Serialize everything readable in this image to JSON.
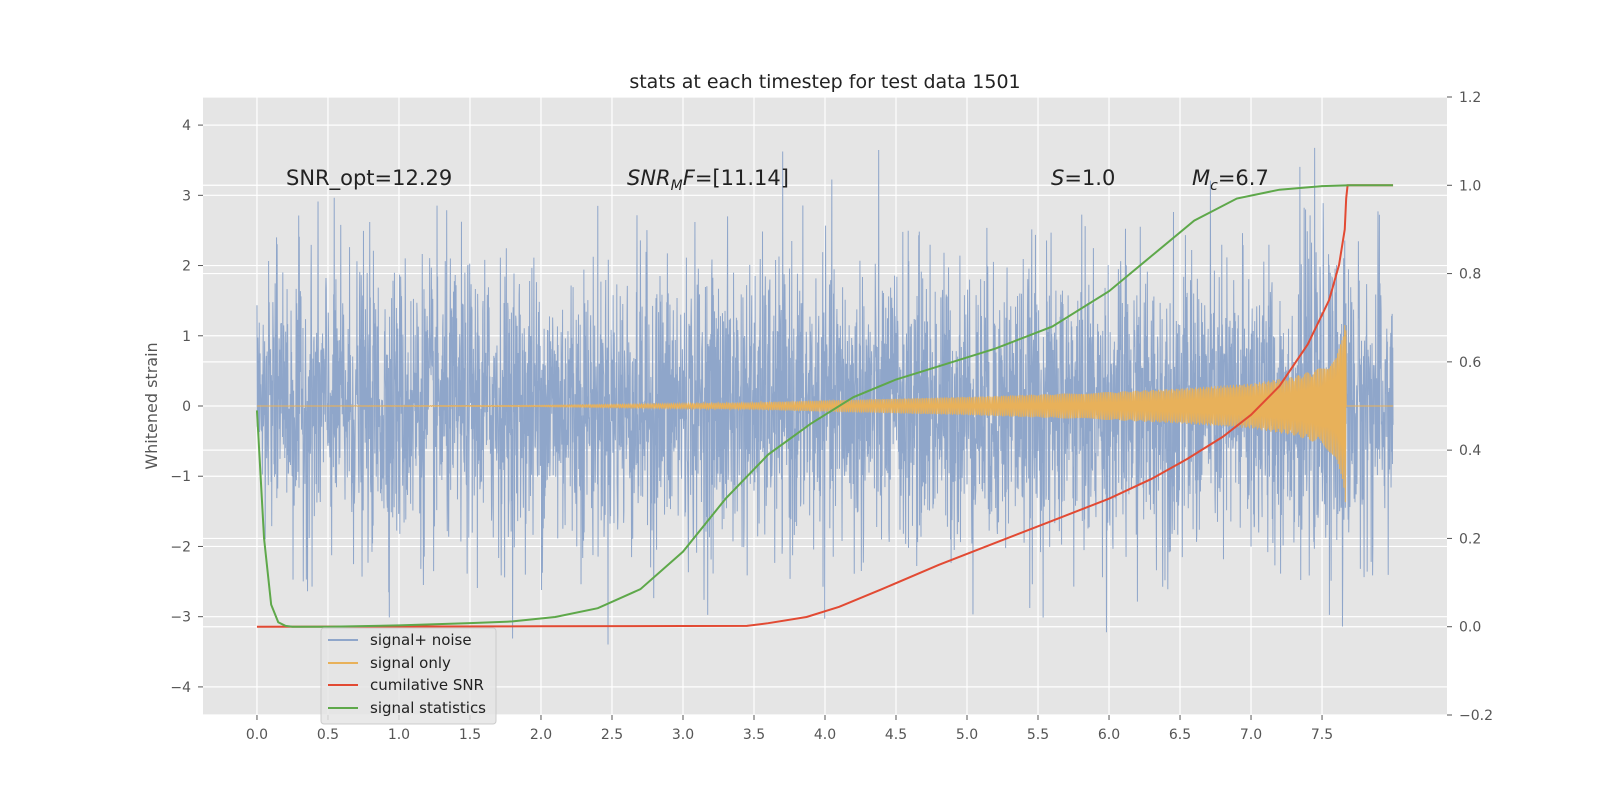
{
  "chart_data": {
    "type": "line",
    "title": "stats at each timestep for test data 1501",
    "ylabel": "Whitened strain",
    "ylabel_right": "",
    "xlim": [
      -0.38,
      8.38
    ],
    "ylim": [
      -4.4,
      4.4
    ],
    "y2lim": [
      -0.2,
      1.2
    ],
    "x_ticks": [
      0.0,
      0.5,
      1.0,
      1.5,
      2.0,
      2.5,
      3.0,
      3.5,
      4.0,
      4.5,
      5.0,
      5.5,
      6.0,
      6.5,
      7.0,
      7.5
    ],
    "x_tick_labels": [
      "0.0",
      "0.5",
      "1.0",
      "1.5",
      "2.0",
      "2.5",
      "3.0",
      "3.5",
      "4.0",
      "4.5",
      "5.0",
      "5.5",
      "6.0",
      "6.5",
      "7.0",
      "7.5"
    ],
    "y_ticks": [
      -4,
      -3,
      -2,
      -1,
      0,
      1,
      2,
      3,
      4
    ],
    "y_tick_labels": [
      "−4",
      "−3",
      "−2",
      "−1",
      "0",
      "1",
      "2",
      "3",
      "4"
    ],
    "y2_ticks": [
      -0.2,
      0.0,
      0.2,
      0.4,
      0.6,
      0.8,
      1.0,
      1.2
    ],
    "y2_tick_labels": [
      "−0.2",
      "0.0",
      "0.2",
      "0.4",
      "0.6",
      "0.8",
      "1.0",
      "1.2"
    ],
    "grid": true,
    "legend_position": "lower-left",
    "annotations": {
      "snr_opt": "SNR_opt=12.29",
      "snr_mf_main": "SNR",
      "snr_mf_sub": "M",
      "snr_mf_rest": "F",
      "snr_mf_value": "=[11.14]",
      "s_symbol": "S",
      "s_value": "=1.0",
      "mc_symbol": "M",
      "mc_sub": "c",
      "mc_value": "=6.7"
    },
    "series": [
      {
        "name": "signal+ noise",
        "axis": "left",
        "color": "#8fa6ca",
        "x_start": 0.0,
        "x_end": 8.0,
        "noise_std": 1.0,
        "y_min": -3.98,
        "y_max": 4.0
      },
      {
        "name": "signal only",
        "axis": "left",
        "color": "#e8b15a",
        "x_start": 0.0,
        "x_end": 8.0,
        "merger_time": 7.67,
        "envelope": {
          "t": [
            0.0,
            2.0,
            3.5,
            4.0,
            5.0,
            6.0,
            6.5,
            7.0,
            7.3,
            7.5,
            7.6,
            7.65,
            7.67
          ],
          "amp": [
            0.0,
            0.01,
            0.05,
            0.08,
            0.13,
            0.2,
            0.25,
            0.32,
            0.42,
            0.55,
            0.75,
            1.1,
            1.5
          ]
        }
      },
      {
        "name": "cumilative SNR",
        "axis": "right",
        "color": "#e24a33",
        "x": [
          0.0,
          1.0,
          2.0,
          3.0,
          3.45,
          3.6,
          3.87,
          4.1,
          4.4,
          4.8,
          5.2,
          5.6,
          6.0,
          6.3,
          6.55,
          6.8,
          7.0,
          7.2,
          7.4,
          7.55,
          7.62,
          7.66,
          7.67,
          7.68,
          8.0
        ],
        "y": [
          0.0,
          0.0005,
          0.001,
          0.0015,
          0.002,
          0.008,
          0.022,
          0.045,
          0.085,
          0.14,
          0.19,
          0.24,
          0.29,
          0.335,
          0.38,
          0.43,
          0.48,
          0.545,
          0.64,
          0.74,
          0.82,
          0.9,
          0.97,
          1.0,
          1.0
        ]
      },
      {
        "name": "signal statistics",
        "axis": "right",
        "color": "#5ea84a",
        "x": [
          0.0,
          0.05,
          0.1,
          0.15,
          0.2,
          0.25,
          0.3,
          0.5,
          1.0,
          1.5,
          1.8,
          2.1,
          2.4,
          2.7,
          3.0,
          3.3,
          3.6,
          3.9,
          4.2,
          4.5,
          4.8,
          5.2,
          5.6,
          6.0,
          6.3,
          6.6,
          6.9,
          7.2,
          7.5,
          7.7,
          8.0
        ],
        "y": [
          0.49,
          0.2,
          0.05,
          0.01,
          0.002,
          0.0,
          0.0,
          0.0,
          0.003,
          0.008,
          0.012,
          0.022,
          0.042,
          0.085,
          0.17,
          0.29,
          0.39,
          0.46,
          0.52,
          0.56,
          0.59,
          0.63,
          0.68,
          0.76,
          0.84,
          0.92,
          0.97,
          0.99,
          0.998,
          1.0,
          1.0
        ]
      }
    ]
  }
}
